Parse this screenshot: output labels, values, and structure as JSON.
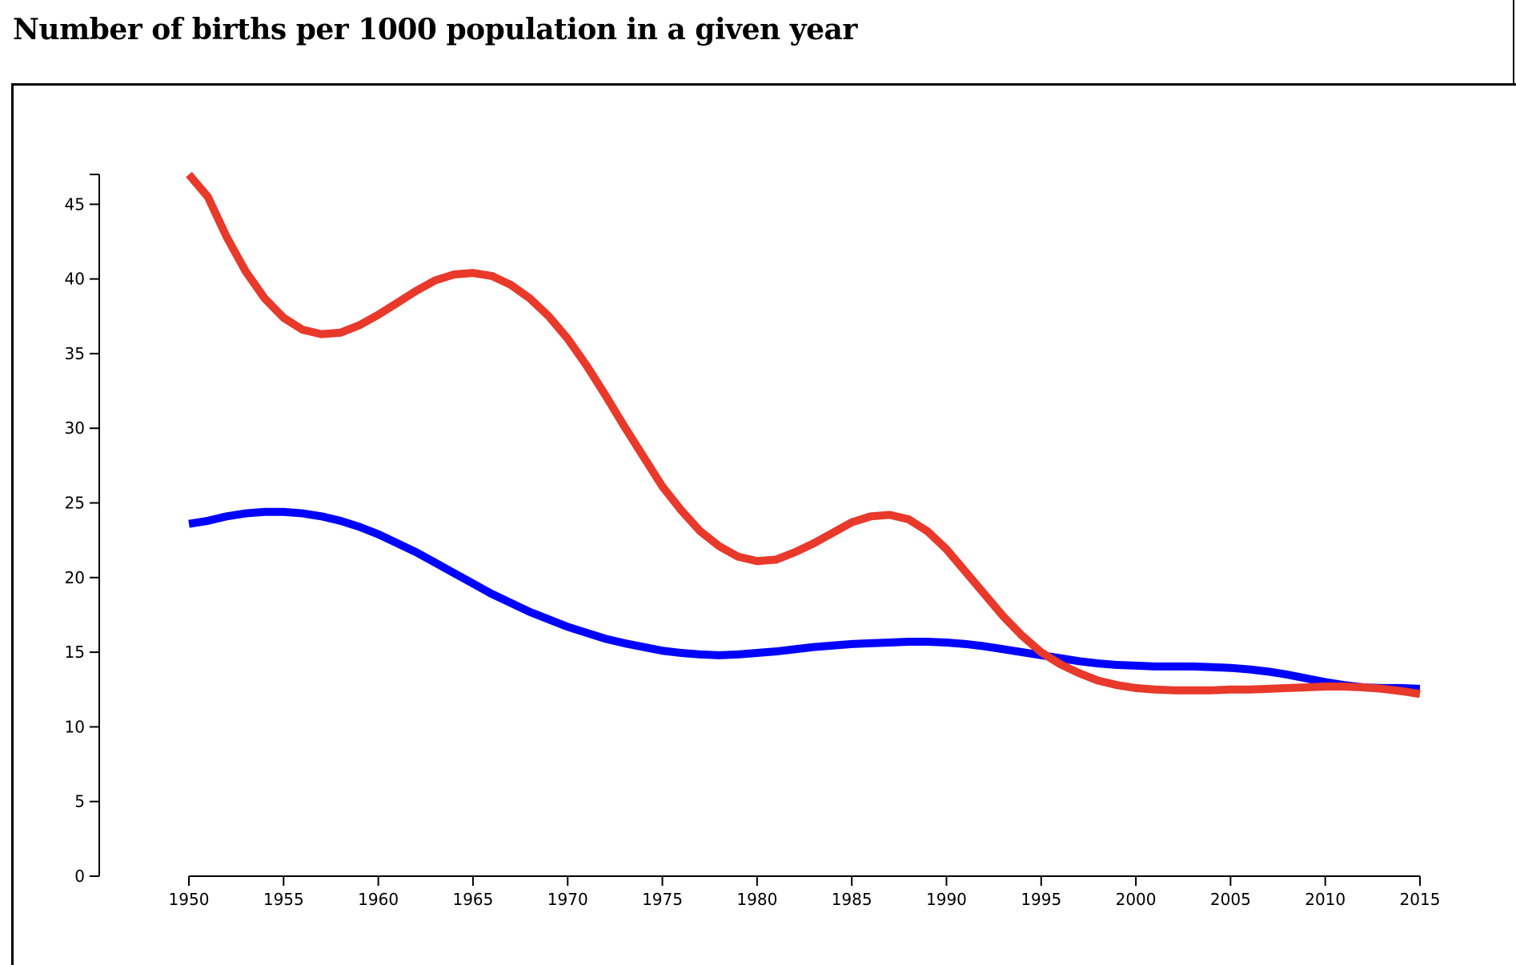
{
  "page": {
    "title": "Number of births per 1000 population in a given year"
  },
  "chart_data": {
    "type": "line",
    "title": "Number of births per 1000 population in a given year",
    "xlabel": "",
    "ylabel": "",
    "xlim": [
      1950,
      2015
    ],
    "ylim": [
      0,
      47
    ],
    "x_ticks": [
      1950,
      1955,
      1960,
      1965,
      1970,
      1975,
      1980,
      1985,
      1990,
      1995,
      2000,
      2005,
      2010,
      2015
    ],
    "y_ticks": [
      0,
      5,
      10,
      15,
      20,
      25,
      30,
      35,
      40,
      45
    ],
    "grid": false,
    "legend": "none",
    "x": [
      1950,
      1951,
      1952,
      1953,
      1954,
      1955,
      1956,
      1957,
      1958,
      1959,
      1960,
      1961,
      1962,
      1963,
      1964,
      1965,
      1966,
      1967,
      1968,
      1969,
      1970,
      1971,
      1972,
      1973,
      1974,
      1975,
      1976,
      1977,
      1978,
      1979,
      1980,
      1981,
      1982,
      1983,
      1984,
      1985,
      1986,
      1987,
      1988,
      1989,
      1990,
      1991,
      1992,
      1993,
      1994,
      1995,
      1996,
      1997,
      1998,
      1999,
      2000,
      2001,
      2002,
      2003,
      2004,
      2005,
      2006,
      2007,
      2008,
      2009,
      2010,
      2011,
      2012,
      2013,
      2014,
      2015
    ],
    "series": [
      {
        "color": "#e8392b",
        "values": [
          47.0,
          45.5,
          42.8,
          40.5,
          38.7,
          37.4,
          36.6,
          36.3,
          36.4,
          36.9,
          37.6,
          38.4,
          39.2,
          39.9,
          40.3,
          40.4,
          40.2,
          39.6,
          38.7,
          37.5,
          36.0,
          34.2,
          32.2,
          30.1,
          28.1,
          26.1,
          24.5,
          23.1,
          22.1,
          21.4,
          21.1,
          21.2,
          21.7,
          22.3,
          23.0,
          23.7,
          24.1,
          24.2,
          23.9,
          23.1,
          21.9,
          20.4,
          18.9,
          17.4,
          16.1,
          15.0,
          14.2,
          13.6,
          13.1,
          12.8,
          12.6,
          12.5,
          12.45,
          12.45,
          12.45,
          12.5,
          12.5,
          12.55,
          12.6,
          12.65,
          12.7,
          12.7,
          12.65,
          12.55,
          12.4,
          12.2
        ]
      },
      {
        "color": "#0000ff",
        "values": [
          23.6,
          23.8,
          24.1,
          24.3,
          24.4,
          24.4,
          24.3,
          24.1,
          23.8,
          23.4,
          22.9,
          22.3,
          21.7,
          21.0,
          20.3,
          19.6,
          18.9,
          18.3,
          17.7,
          17.2,
          16.7,
          16.3,
          15.9,
          15.6,
          15.35,
          15.1,
          14.95,
          14.85,
          14.8,
          14.85,
          14.95,
          15.05,
          15.2,
          15.35,
          15.45,
          15.55,
          15.6,
          15.65,
          15.7,
          15.7,
          15.65,
          15.55,
          15.4,
          15.2,
          15.0,
          14.8,
          14.6,
          14.4,
          14.25,
          14.15,
          14.1,
          14.05,
          14.05,
          14.05,
          14.0,
          13.95,
          13.85,
          13.7,
          13.5,
          13.25,
          13.0,
          12.8,
          12.65,
          12.6,
          12.6,
          12.55
        ]
      }
    ]
  }
}
